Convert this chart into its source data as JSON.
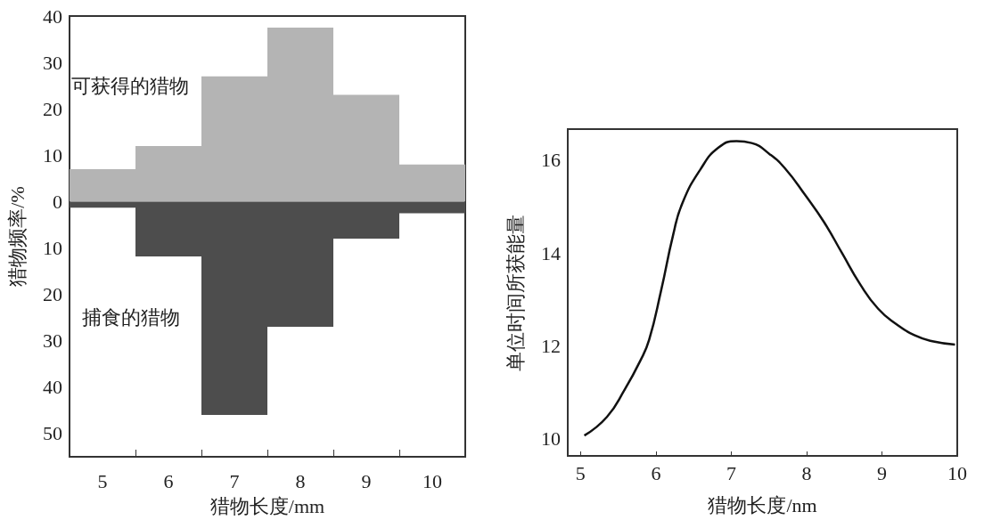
{
  "chart_data": [
    {
      "type": "bar",
      "xlabel": "猎物长度/mm",
      "ylabel": "猎物频率/%",
      "categories": [
        "5",
        "6",
        "7",
        "8",
        "9",
        "10"
      ],
      "series": [
        {
          "name": "可获得的猎物",
          "color": "#b4b4b4",
          "values": [
            7,
            12,
            27,
            37.5,
            23,
            8
          ]
        },
        {
          "name": "捕食的猎物",
          "color": "#4d4d4d",
          "values": [
            -1.3,
            -11.8,
            -46,
            -27,
            -8,
            -2.5
          ]
        }
      ],
      "ylim": [
        -55,
        40
      ],
      "yticks": [
        40,
        30,
        20,
        10,
        0,
        {
          "value": -10,
          "label": "10"
        },
        {
          "value": -20,
          "label": "20"
        },
        {
          "value": -30,
          "label": "30"
        },
        {
          "value": -40,
          "label": "40"
        },
        {
          "value": -50,
          "label": "50"
        }
      ],
      "grid": false,
      "legend": false,
      "stacked": true
    },
    {
      "type": "line",
      "xlabel": "猎物长度/nm",
      "ylabel": "单位时间所获能量",
      "color": "#111111",
      "marker": "none",
      "line_style": "solid",
      "grid": false,
      "x": [
        5.05,
        5.35,
        5.59,
        5.79,
        5.91,
        6.07,
        6.23,
        6.35,
        6.59,
        6.83,
        7.07,
        7.27,
        7.51,
        7.71,
        7.99,
        8.23,
        8.47,
        8.71,
        8.95,
        9.19,
        9.43,
        9.67,
        9.97
      ],
      "values": [
        10.07,
        10.47,
        11.07,
        11.67,
        12.13,
        13.2,
        14.4,
        15.07,
        15.8,
        16.27,
        16.41,
        16.37,
        16.13,
        15.83,
        15.23,
        14.67,
        14,
        13.33,
        12.8,
        12.47,
        12.23,
        12.1,
        12.03
      ],
      "xlim": [
        4.83,
        10
      ],
      "xticks": [
        5,
        6,
        7,
        8,
        9,
        10
      ],
      "ylim": [
        9.63,
        16.67
      ],
      "yticks": [
        10,
        12,
        14,
        16
      ]
    }
  ]
}
